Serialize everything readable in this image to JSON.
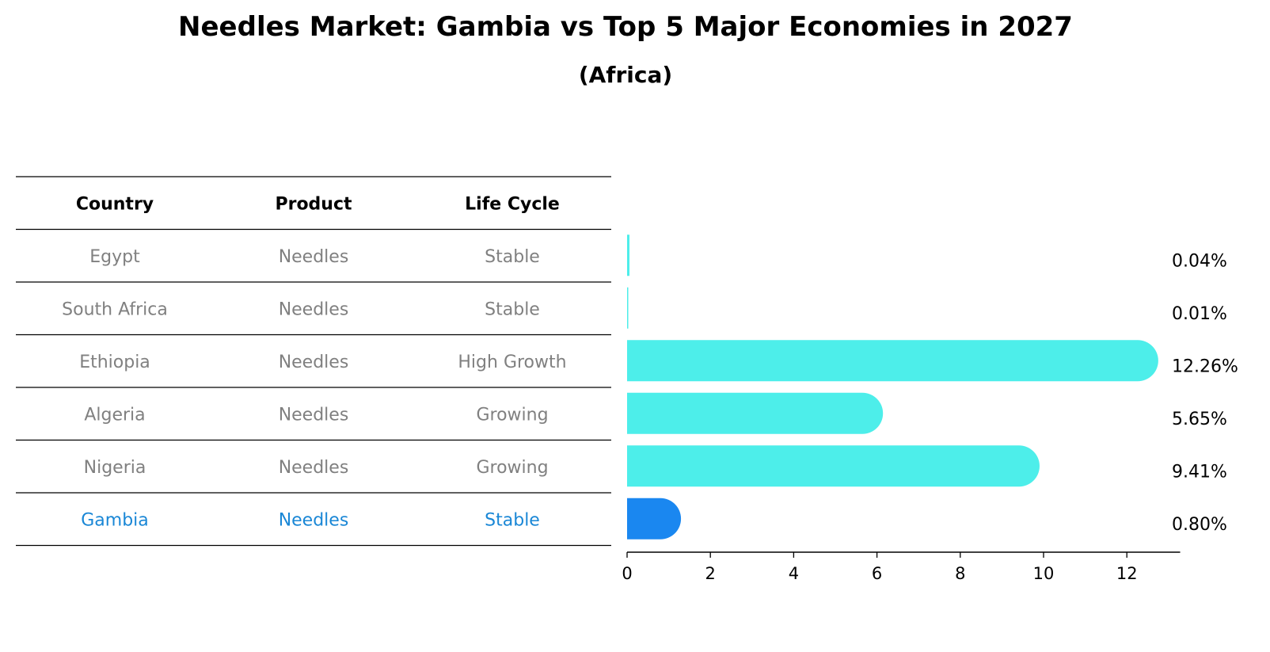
{
  "title": "Needles Market: Gambia vs Top 5 Major Economies in 2027",
  "subtitle": "(Africa)",
  "table": {
    "headers": [
      "Country",
      "Product",
      "Life Cycle"
    ],
    "rows": [
      {
        "country": "Egypt",
        "product": "Needles",
        "life_cycle": "Stable",
        "highlight": false
      },
      {
        "country": "South Africa",
        "product": "Needles",
        "life_cycle": "Stable",
        "highlight": false
      },
      {
        "country": "Ethiopia",
        "product": "Needles",
        "life_cycle": "High Growth",
        "highlight": false
      },
      {
        "country": "Algeria",
        "product": "Needles",
        "life_cycle": "Growing",
        "highlight": false
      },
      {
        "country": "Nigeria",
        "product": "Needles",
        "life_cycle": "Growing",
        "highlight": false
      },
      {
        "country": "Gambia",
        "product": "Needles",
        "life_cycle": "Stable",
        "highlight": true
      }
    ]
  },
  "colors": {
    "bar": "#4DEEEA",
    "highlight_bar": "#1A87F0",
    "highlight_text": "#1A87D6",
    "muted_text": "#808080"
  },
  "chart_data": {
    "type": "bar",
    "orientation": "horizontal",
    "categories": [
      "Egypt",
      "South Africa",
      "Ethiopia",
      "Algeria",
      "Nigeria",
      "Gambia"
    ],
    "values": [
      0.04,
      0.01,
      12.26,
      5.65,
      9.41,
      0.8
    ],
    "value_labels": [
      "0.04%",
      "0.01%",
      "12.26%",
      "5.65%",
      "9.41%",
      "0.80%"
    ],
    "xlim": [
      0,
      12.9
    ],
    "xticks": [
      0,
      2,
      4,
      6,
      8,
      10,
      12
    ],
    "title": "Needles Market: Gambia vs Top 5 Major Economies in 2027",
    "subtitle": "(Africa)",
    "grid": false
  }
}
